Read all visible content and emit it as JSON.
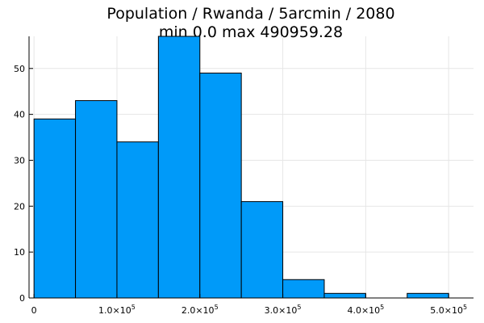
{
  "chart_data": {
    "type": "bar",
    "title_lines": [
      "Population / Rwanda / 5arcmin / 2080",
      "min 0.0  max 490959.28"
    ],
    "xlabel": "",
    "ylabel": "",
    "bin_edges": [
      0,
      50000,
      100000,
      150000,
      200000,
      250000,
      300000,
      350000,
      400000,
      450000,
      500000
    ],
    "values": [
      39,
      43,
      34,
      57,
      49,
      21,
      4,
      1,
      0,
      1
    ],
    "xlim": [
      -6000,
      530000
    ],
    "ylim": [
      0,
      57
    ],
    "x_ticks": [
      {
        "value": 0,
        "mantissa": "0",
        "exponent": ""
      },
      {
        "value": 100000,
        "mantissa": "1.0×10",
        "exponent": "5"
      },
      {
        "value": 200000,
        "mantissa": "2.0×10",
        "exponent": "5"
      },
      {
        "value": 300000,
        "mantissa": "3.0×10",
        "exponent": "5"
      },
      {
        "value": 400000,
        "mantissa": "4.0×10",
        "exponent": "5"
      },
      {
        "value": 500000,
        "mantissa": "5.0×10",
        "exponent": "5"
      }
    ],
    "y_ticks": [
      0,
      10,
      20,
      30,
      40,
      50
    ],
    "grid": true,
    "legend": "none",
    "bar_color": "#009af9",
    "bar_edge_color": "#000000"
  }
}
